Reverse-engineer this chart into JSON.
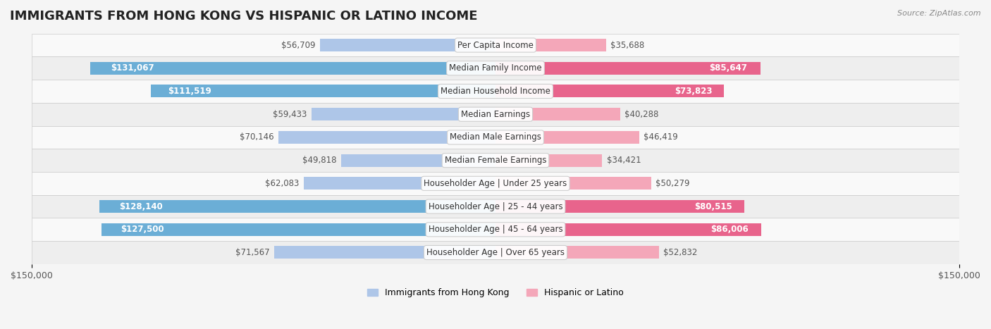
{
  "title": "IMMIGRANTS FROM HONG KONG VS HISPANIC OR LATINO INCOME",
  "source": "Source: ZipAtlas.com",
  "categories": [
    "Per Capita Income",
    "Median Family Income",
    "Median Household Income",
    "Median Earnings",
    "Median Male Earnings",
    "Median Female Earnings",
    "Householder Age | Under 25 years",
    "Householder Age | 25 - 44 years",
    "Householder Age | 45 - 64 years",
    "Householder Age | Over 65 years"
  ],
  "hk_values": [
    56709,
    131067,
    111519,
    59433,
    70146,
    49818,
    62083,
    128140,
    127500,
    71567
  ],
  "hl_values": [
    35688,
    85647,
    73823,
    40288,
    46419,
    34421,
    50279,
    80515,
    86006,
    52832
  ],
  "hk_labels": [
    "$56,709",
    "$131,067",
    "$111,519",
    "$59,433",
    "$70,146",
    "$49,818",
    "$62,083",
    "$128,140",
    "$127,500",
    "$71,567"
  ],
  "hl_labels": [
    "$35,688",
    "$85,647",
    "$73,823",
    "$40,288",
    "$46,419",
    "$34,421",
    "$50,279",
    "$80,515",
    "$86,006",
    "$52,832"
  ],
  "hk_color_light": "#aec6e8",
  "hk_color_dark": "#6baed6",
  "hl_color_light": "#f4a7b9",
  "hl_color_dark": "#e8648c",
  "max_val": 150000,
  "bar_height": 0.55,
  "bg_color": "#f5f5f5",
  "row_bg_light": "#f9f9f9",
  "row_bg_dark": "#eeeeee",
  "label_bg": "#ffffff",
  "title_fontsize": 13,
  "tick_fontsize": 9,
  "bar_label_fontsize": 8.5,
  "category_fontsize": 8.5
}
